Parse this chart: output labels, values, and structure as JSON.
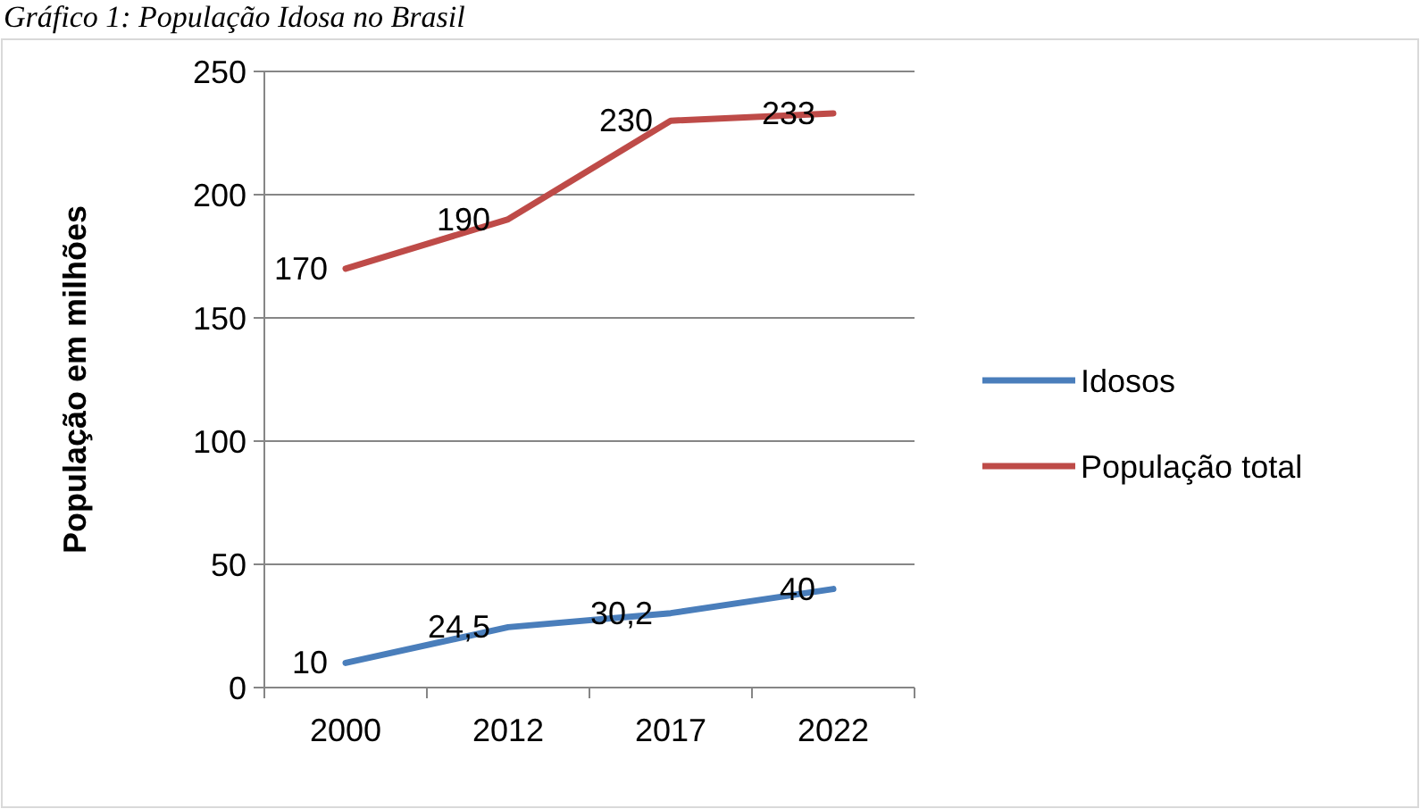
{
  "chart_data": {
    "type": "line",
    "title": "Gráfico 1: População Idosa no Brasil",
    "ylabel": "População em milhões",
    "categories": [
      "2000",
      "2012",
      "2017",
      "2022"
    ],
    "series": [
      {
        "name": "Idosos",
        "color": "#4a7ebb",
        "values": [
          10,
          24.5,
          30.2,
          40
        ],
        "value_labels": [
          "10",
          "24,5",
          "30,2",
          "40"
        ]
      },
      {
        "name": "População total",
        "color": "#be4b48",
        "values": [
          170,
          190,
          230,
          233
        ],
        "value_labels": [
          "170",
          "190",
          "230",
          "233"
        ]
      }
    ],
    "ylim": [
      0,
      250
    ],
    "yticks": [
      0,
      50,
      100,
      150,
      200,
      250
    ],
    "grid": "y",
    "legend": "right",
    "marker": "none",
    "line_style": "solid"
  }
}
